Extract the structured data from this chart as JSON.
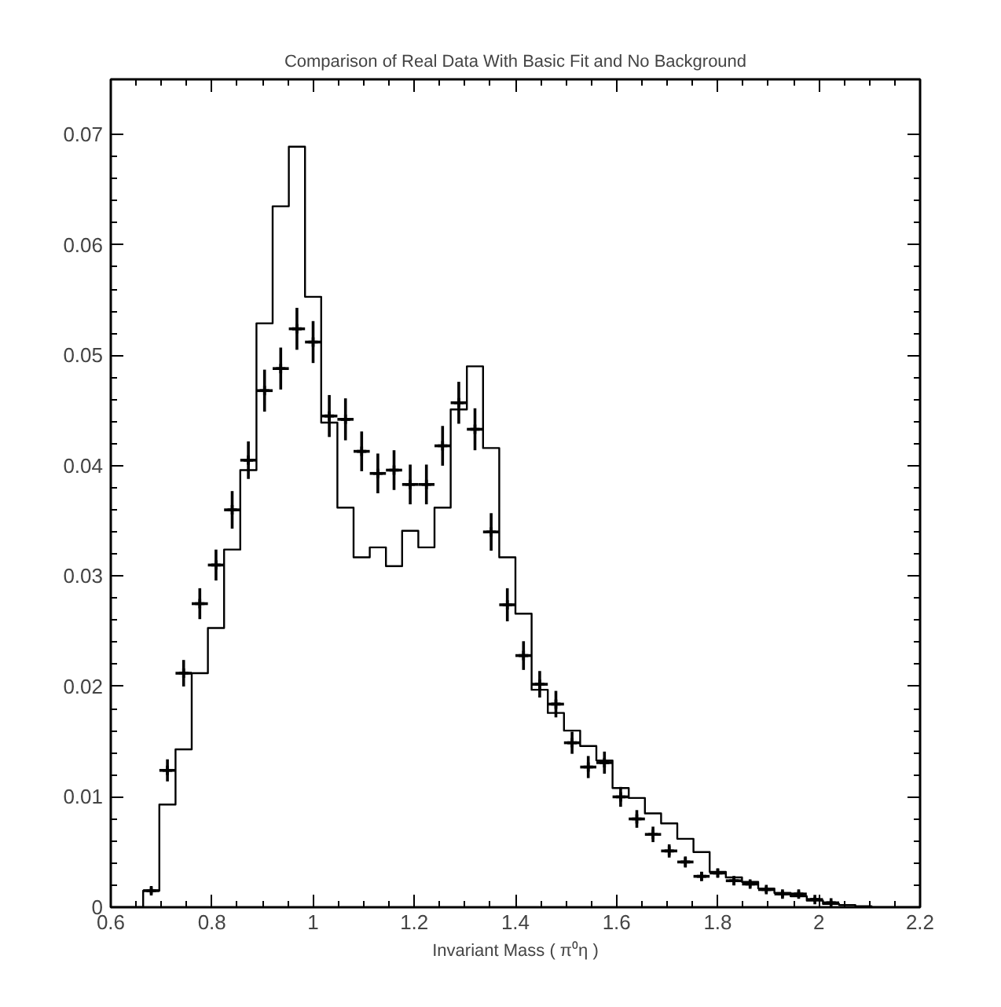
{
  "chart_data": {
    "type": "histogram",
    "title": "Comparison of Real Data With Basic Fit and No Background",
    "xlabel": "Invariant Mass ( π⁰η )",
    "xlim": [
      0.6,
      2.2
    ],
    "ylim": [
      0,
      0.075
    ],
    "xticks": [
      0.6,
      0.8,
      1,
      1.2,
      1.4,
      1.6,
      1.8,
      2,
      2.2
    ],
    "yticks": [
      0,
      0.01,
      0.02,
      0.03,
      0.04,
      0.05,
      0.06,
      0.07
    ],
    "grid": false,
    "series": [
      {
        "color": "#000000",
        "bins": [
          0.6,
          0.632,
          0.664,
          0.696,
          0.728,
          0.76,
          0.792,
          0.824,
          0.856,
          0.888,
          0.92,
          0.952,
          0.984,
          1.016,
          1.048,
          1.08,
          1.112,
          1.144,
          1.176,
          1.208,
          1.24,
          1.272,
          1.304,
          1.336,
          1.368,
          1.4,
          1.432,
          1.464,
          1.496,
          1.528,
          1.56,
          1.592,
          1.624,
          1.656,
          1.688,
          1.72,
          1.752,
          1.784,
          1.816,
          1.848,
          1.88,
          1.912,
          1.944,
          1.976,
          2.008,
          2.04,
          2.072,
          2.104,
          2.136,
          2.168,
          2.2
        ],
        "values": [
          0,
          0,
          0.0015,
          0.0093,
          0.0143,
          0.0212,
          0.0253,
          0.0324,
          0.0396,
          0.0529,
          0.0635,
          0.0689,
          0.0553,
          0.0439,
          0.0362,
          0.0317,
          0.0326,
          0.0309,
          0.0341,
          0.0326,
          0.0362,
          0.0451,
          0.049,
          0.0416,
          0.0317,
          0.0266,
          0.0197,
          0.0176,
          0.016,
          0.0146,
          0.0133,
          0.0108,
          0.0099,
          0.0085,
          0.0076,
          0.0062,
          0.005,
          0.0032,
          0.0027,
          0.0023,
          0.0017,
          0.0013,
          0.001,
          0.0006,
          0.0003,
          0.0002,
          0.0001,
          0,
          0,
          0
        ]
      },
      {
        "type": "scatter",
        "color": "#000000",
        "marker": "cross",
        "x": [
          0.68,
          0.712,
          0.744,
          0.776,
          0.808,
          0.84,
          0.872,
          0.904,
          0.936,
          0.968,
          1.0,
          1.032,
          1.064,
          1.096,
          1.128,
          1.16,
          1.192,
          1.224,
          1.256,
          1.288,
          1.32,
          1.352,
          1.384,
          1.416,
          1.448,
          1.48,
          1.512,
          1.544,
          1.576,
          1.608,
          1.64,
          1.672,
          1.704,
          1.736,
          1.768,
          1.8,
          1.832,
          1.864,
          1.896,
          1.928,
          1.96,
          1.992,
          2.024
        ],
        "values": [
          0.0015,
          0.0124,
          0.0212,
          0.0275,
          0.031,
          0.036,
          0.0405,
          0.0468,
          0.0488,
          0.0524,
          0.0512,
          0.0445,
          0.0442,
          0.0413,
          0.0393,
          0.0396,
          0.0383,
          0.0383,
          0.0418,
          0.0457,
          0.0433,
          0.034,
          0.0274,
          0.0228,
          0.0202,
          0.0184,
          0.0149,
          0.0127,
          0.0131,
          0.01,
          0.008,
          0.0066,
          0.0051,
          0.0041,
          0.0028,
          0.0031,
          0.0024,
          0.0021,
          0.0016,
          0.0012,
          0.0012,
          0.0007,
          0.0004
        ],
        "errors": [
          0.0003,
          0.001,
          0.0012,
          0.0014,
          0.0014,
          0.0017,
          0.0017,
          0.0019,
          0.0019,
          0.0019,
          0.0019,
          0.0019,
          0.0019,
          0.0018,
          0.0018,
          0.0018,
          0.0018,
          0.0018,
          0.0018,
          0.0019,
          0.0019,
          0.0017,
          0.0015,
          0.0013,
          0.0012,
          0.0012,
          0.001,
          0.001,
          0.001,
          0.0009,
          0.0008,
          0.0007,
          0.0006,
          0.0005,
          0.0004,
          0.0004,
          0.0004,
          0.0003,
          0.0003,
          0.0003,
          0.0003,
          0.0002,
          0.0002
        ],
        "xerrors": [
          0.016,
          0.016,
          0.016,
          0.016,
          0.016,
          0.016,
          0.016,
          0.016,
          0.016,
          0.016,
          0.016,
          0.016,
          0.016,
          0.016,
          0.016,
          0.016,
          0.016,
          0.016,
          0.016,
          0.016,
          0.016,
          0.016,
          0.016,
          0.016,
          0.016,
          0.016,
          0.016,
          0.016,
          0.016,
          0.016,
          0.016,
          0.016,
          0.016,
          0.016,
          0.016,
          0.016,
          0.016,
          0.016,
          0.016,
          0.016,
          0.016,
          0.016,
          0.016
        ]
      }
    ]
  }
}
